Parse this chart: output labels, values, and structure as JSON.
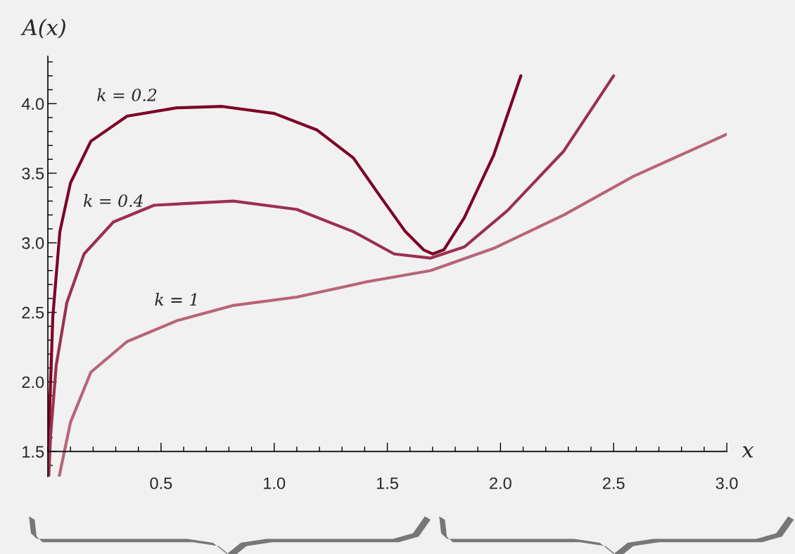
{
  "chart_data": {
    "type": "line",
    "xlabel": "x",
    "ylabel": "A(x)",
    "xlim": [
      0,
      3.0
    ],
    "ylim": [
      1.32,
      4.34
    ],
    "xticks": [
      0.5,
      {
        "value": 1,
        "label": "1.0"
      },
      1.5,
      {
        "value": 2,
        "label": "2.0"
      },
      2.5,
      {
        "value": 3,
        "label": "3.0"
      }
    ],
    "yticks": [
      1.5,
      {
        "value": 2,
        "label": "2.0"
      },
      2.5,
      {
        "value": 3,
        "label": "3.0"
      },
      3.5,
      {
        "value": 4,
        "label": "4.0"
      }
    ],
    "grid": false,
    "legend": false,
    "marker": "none",
    "line_style": "solid",
    "series": [
      {
        "name": "k = 0.2",
        "color": "#7d0025",
        "x": [
          0.002,
          0.006,
          0.022,
          0.053,
          0.1,
          0.19,
          0.35,
          0.57,
          0.77,
          1.0,
          1.19,
          1.35,
          1.47,
          1.58,
          1.66,
          1.7,
          1.75,
          1.84,
          1.97,
          2.09
        ],
        "values": [
          1.32,
          1.71,
          2.47,
          3.08,
          3.43,
          3.73,
          3.91,
          3.97,
          3.98,
          3.93,
          3.81,
          3.61,
          3.33,
          3.08,
          2.95,
          2.92,
          2.95,
          3.18,
          3.63,
          4.2
        ]
      },
      {
        "name": "k = 0.4",
        "color": "#9b3050",
        "x": [
          0.004,
          0.012,
          0.037,
          0.084,
          0.16,
          0.29,
          0.47,
          0.82,
          1.1,
          1.35,
          1.53,
          1.69,
          1.84,
          2.03,
          2.28,
          2.5
        ],
        "values": [
          1.32,
          1.61,
          2.12,
          2.57,
          2.92,
          3.15,
          3.27,
          3.3,
          3.24,
          3.08,
          2.92,
          2.89,
          2.97,
          3.23,
          3.66,
          4.2
        ]
      },
      {
        "name": "k = 1",
        "color": "#b86479",
        "x": [
          0.05,
          0.1,
          0.19,
          0.35,
          0.57,
          0.82,
          1.1,
          1.41,
          1.69,
          1.97,
          2.28,
          2.59,
          3.0
        ],
        "values": [
          1.32,
          1.71,
          2.07,
          2.29,
          2.44,
          2.55,
          2.61,
          2.72,
          2.8,
          2.96,
          3.2,
          3.48,
          3.78
        ]
      }
    ]
  }
}
